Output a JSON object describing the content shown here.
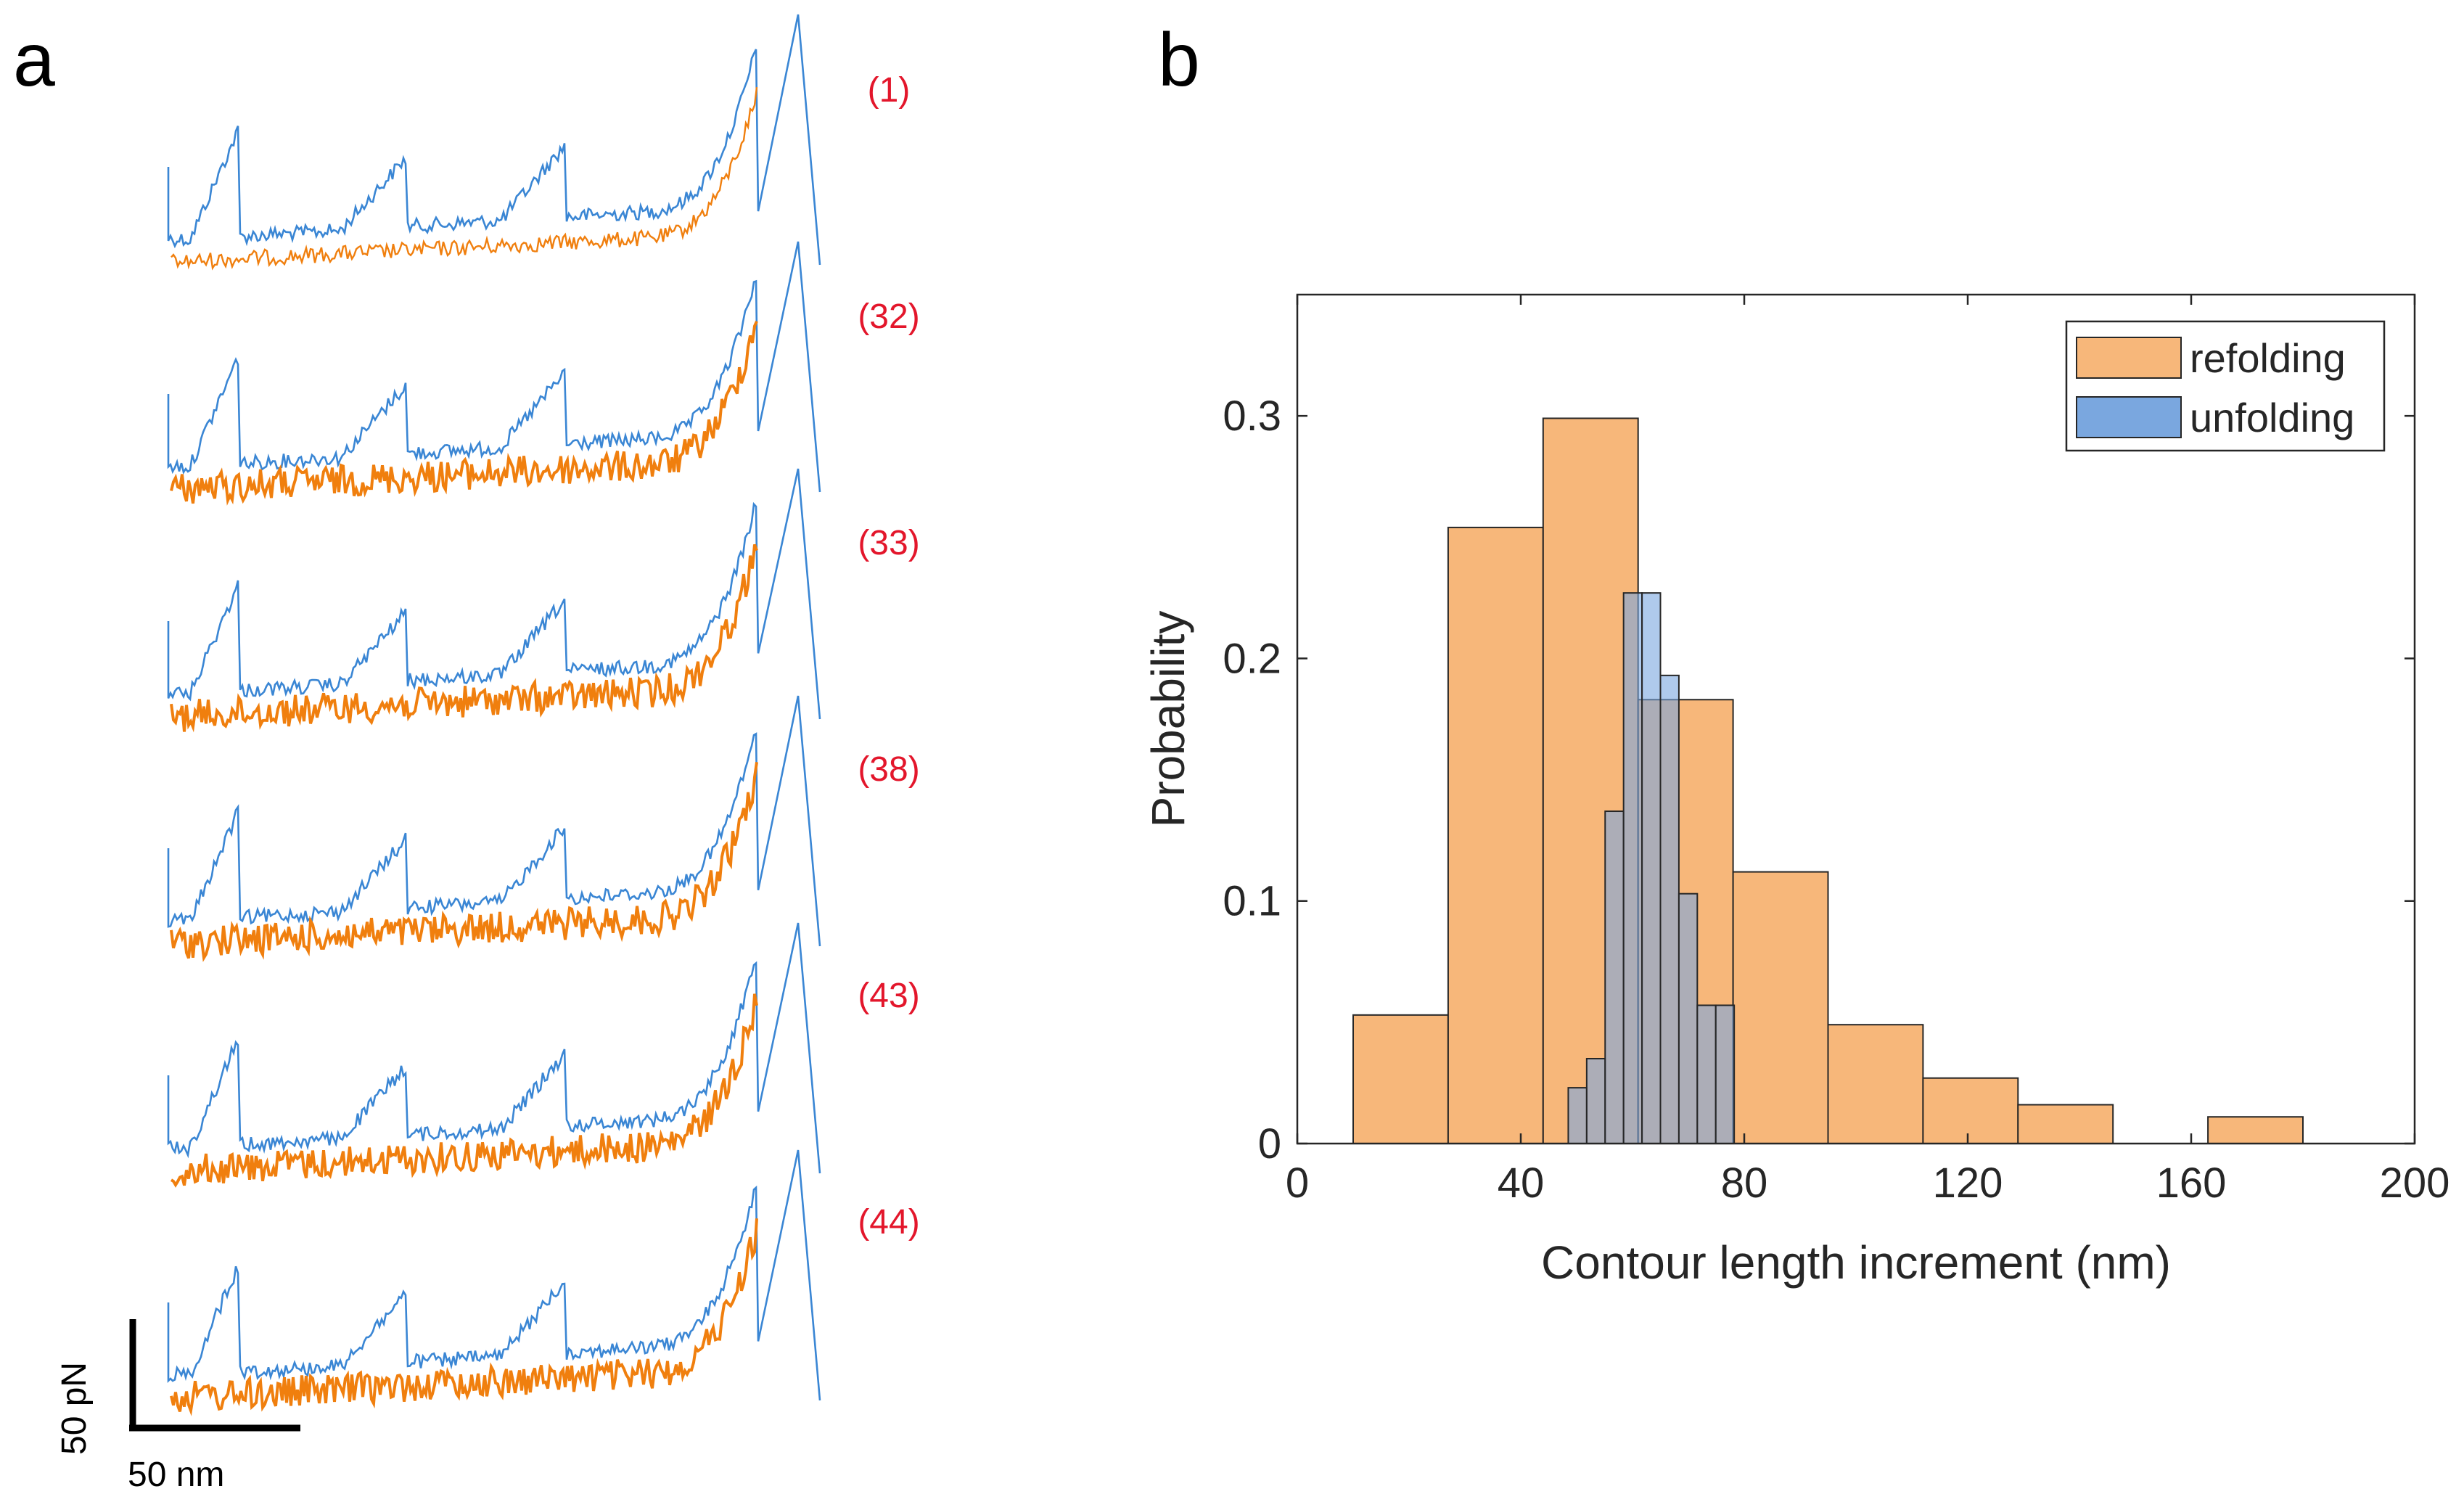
{
  "panel_a": {
    "label": "a",
    "trace_labels": [
      "(1)",
      "(32)",
      "(33)",
      "(38)",
      "(43)",
      "(44)"
    ],
    "scale_bar": {
      "force_label": "50 pN",
      "length_label": "50 nm"
    },
    "colors": {
      "unfolding": "#3a86d4",
      "refolding": "#f07f0e",
      "label": "#e3162b"
    }
  },
  "panel_b": {
    "label": "b"
  },
  "chart_data": {
    "type": "bar",
    "xlabel": "Contour length increment (nm)",
    "ylabel": "Probability",
    "xlim": [
      0,
      200
    ],
    "ylim": [
      0,
      0.35
    ],
    "xticks": [
      0,
      40,
      80,
      120,
      160,
      200
    ],
    "xtick_labels": [
      "0",
      "40",
      "80",
      "120",
      "160",
      "200"
    ],
    "yticks": [
      0,
      0.1,
      0.2,
      0.3
    ],
    "ytick_labels": [
      "0",
      "0.1",
      "0.2",
      "0.3"
    ],
    "grid": false,
    "legend": {
      "position": "top-right",
      "entries": [
        "refolding",
        "unfolding"
      ]
    },
    "series": [
      {
        "name": "refolding",
        "color": "#f7b77a",
        "bins": [
          {
            "x0": 10,
            "x1": 27,
            "value": 0.053
          },
          {
            "x0": 27,
            "x1": 44,
            "value": 0.254
          },
          {
            "x0": 44,
            "x1": 61,
            "value": 0.299
          },
          {
            "x0": 61,
            "x1": 78,
            "value": 0.183
          },
          {
            "x0": 78,
            "x1": 95,
            "value": 0.112
          },
          {
            "x0": 95,
            "x1": 112,
            "value": 0.049
          },
          {
            "x0": 112,
            "x1": 129,
            "value": 0.027
          },
          {
            "x0": 129,
            "x1": 146,
            "value": 0.016
          },
          {
            "x0": 146,
            "x1": 163,
            "value": 0
          },
          {
            "x0": 163,
            "x1": 180,
            "value": 0.011
          }
        ]
      },
      {
        "name": "unfolding",
        "color": "#7aa7df",
        "bins": [
          {
            "x0": 48.5,
            "x1": 51.8,
            "value": 0.023
          },
          {
            "x0": 51.8,
            "x1": 55.1,
            "value": 0.035
          },
          {
            "x0": 55.1,
            "x1": 58.4,
            "value": 0.137
          },
          {
            "x0": 58.4,
            "x1": 61.7,
            "value": 0.227
          },
          {
            "x0": 61.7,
            "x1": 65.0,
            "value": 0.227
          },
          {
            "x0": 65.0,
            "x1": 68.3,
            "value": 0.193
          },
          {
            "x0": 68.3,
            "x1": 71.6,
            "value": 0.103
          },
          {
            "x0": 71.6,
            "x1": 74.9,
            "value": 0.057
          },
          {
            "x0": 74.9,
            "x1": 78.2,
            "value": 0.057
          }
        ]
      }
    ]
  }
}
